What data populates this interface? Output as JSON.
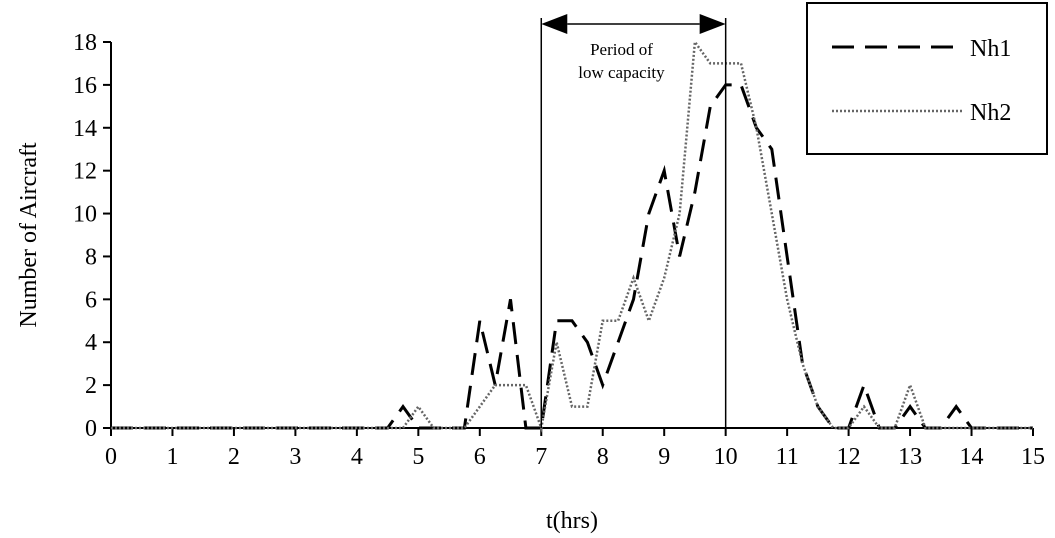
{
  "chart_data": {
    "type": "line",
    "xlabel": "t(hrs)",
    "ylabel": "Number of Aircraft",
    "xlim": [
      0,
      15
    ],
    "ylim": [
      0,
      18
    ],
    "xticks": [
      0,
      1,
      2,
      3,
      4,
      5,
      6,
      7,
      8,
      9,
      10,
      11,
      12,
      13,
      14,
      15
    ],
    "yticks": [
      0,
      2,
      4,
      6,
      8,
      10,
      12,
      14,
      16,
      18
    ],
    "grid": false,
    "legend_position": "top-right",
    "series": [
      {
        "name": "Nh1",
        "style": "dashed",
        "color": "#000000",
        "x": [
          0,
          0.25,
          0.5,
          0.75,
          1,
          1.25,
          1.5,
          1.75,
          2,
          2.25,
          2.5,
          2.75,
          3,
          3.25,
          3.5,
          3.75,
          4,
          4.25,
          4.5,
          4.75,
          5,
          5.25,
          5.5,
          5.75,
          6,
          6.25,
          6.5,
          6.75,
          7,
          7.25,
          7.5,
          7.75,
          8,
          8.25,
          8.5,
          8.75,
          9,
          9.25,
          9.5,
          9.75,
          10,
          10.25,
          10.5,
          10.75,
          11,
          11.25,
          11.5,
          11.75,
          12,
          12.25,
          12.5,
          12.75,
          13,
          13.25,
          13.5,
          13.75,
          14,
          14.25,
          14.5,
          14.75,
          15
        ],
        "values": [
          0,
          0,
          0,
          0,
          0,
          0,
          0,
          0,
          0,
          0,
          0,
          0,
          0,
          0,
          0,
          0,
          0,
          0,
          0,
          1,
          0,
          0,
          0,
          0,
          5,
          2,
          6,
          0,
          0,
          5,
          5,
          4,
          2,
          4,
          6,
          10,
          12,
          8,
          11,
          15,
          16,
          16,
          14,
          13,
          8,
          3,
          1,
          0,
          0,
          2,
          0,
          0,
          1,
          0,
          0,
          1,
          0,
          0,
          0,
          0,
          0
        ]
      },
      {
        "name": "Nh2",
        "style": "dotted",
        "color": "#666666",
        "x": [
          0,
          0.25,
          0.5,
          0.75,
          1,
          1.25,
          1.5,
          1.75,
          2,
          2.25,
          2.5,
          2.75,
          3,
          3.25,
          3.5,
          3.75,
          4,
          4.25,
          4.5,
          4.75,
          5,
          5.25,
          5.5,
          5.75,
          6,
          6.25,
          6.5,
          6.75,
          7,
          7.25,
          7.5,
          7.75,
          8,
          8.25,
          8.5,
          8.75,
          9,
          9.25,
          9.5,
          9.75,
          10,
          10.25,
          10.5,
          10.75,
          11,
          11.25,
          11.5,
          11.75,
          12,
          12.25,
          12.5,
          12.75,
          13,
          13.25,
          13.5,
          13.75,
          14,
          14.25,
          14.5,
          14.75,
          15
        ],
        "values": [
          0,
          0,
          0,
          0,
          0,
          0,
          0,
          0,
          0,
          0,
          0,
          0,
          0,
          0,
          0,
          0,
          0,
          0,
          0,
          0,
          1,
          0,
          0,
          0,
          1,
          2,
          2,
          2,
          0,
          4,
          1,
          1,
          5,
          5,
          7,
          5,
          7,
          10,
          18,
          17,
          17,
          17,
          14,
          10,
          6,
          3,
          1,
          0,
          0,
          1,
          0,
          0,
          2,
          0,
          0,
          0,
          0,
          0,
          0,
          0,
          0
        ]
      }
    ],
    "annotations": [
      {
        "label": "Period of low capacity",
        "line1": "Period of",
        "line2": "low capacity",
        "x_start": 7,
        "x_end": 10,
        "arrow": "double-headed"
      }
    ]
  }
}
